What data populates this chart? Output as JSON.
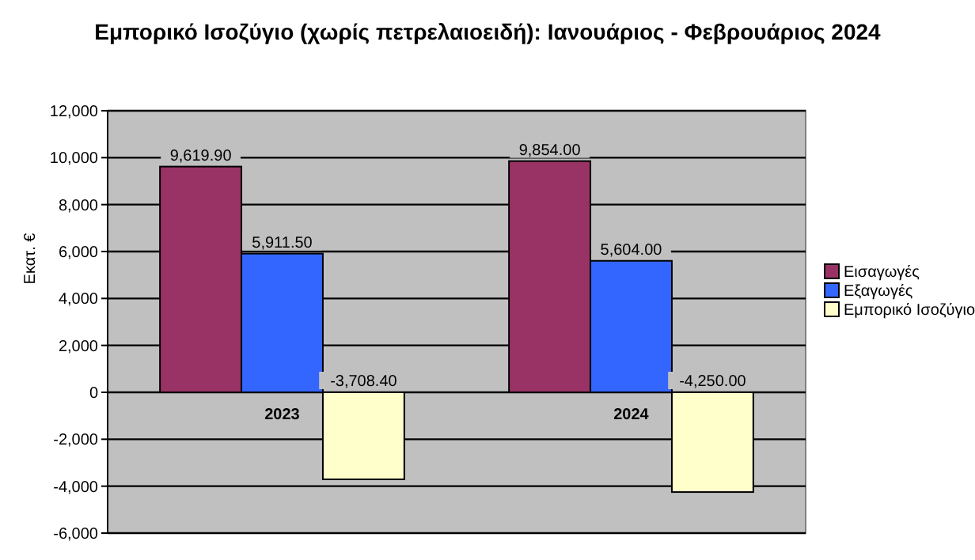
{
  "chart_data": {
    "type": "bar",
    "title": "Εμπορικό Ισοζύγιο (χωρίς πετρελαιοειδή): Ιανουάριος - Φεβρουάριος 2024",
    "ylabel": "Εκατ. €",
    "categories": [
      "2023",
      "2024"
    ],
    "series": [
      {
        "name": "Εισαγωγές",
        "color": "#993366",
        "values": [
          9619.9,
          9854.0
        ],
        "value_labels": [
          "9,619.90",
          "9,854.00"
        ]
      },
      {
        "name": "Εξαγωγές",
        "color": "#3366ff",
        "values": [
          5911.5,
          5604.0
        ],
        "value_labels": [
          "5,911.50",
          "5,604.00"
        ]
      },
      {
        "name": "Εμπορικό Ισοζύγιο",
        "color": "#ffffcc",
        "values": [
          -3708.4,
          -4250.0
        ],
        "value_labels": [
          "-3,708.40",
          "-4,250.00"
        ]
      }
    ],
    "ylim": [
      -6000,
      12000
    ],
    "yticks": [
      {
        "value": -6000,
        "label": "-6,000"
      },
      {
        "value": -4000,
        "label": "-4,000"
      },
      {
        "value": -2000,
        "label": "-2,000"
      },
      {
        "value": 0,
        "label": "0"
      },
      {
        "value": 2000,
        "label": "2,000"
      },
      {
        "value": 4000,
        "label": "4,000"
      },
      {
        "value": 6000,
        "label": "6,000"
      },
      {
        "value": 8000,
        "label": "8,000"
      },
      {
        "value": 10000,
        "label": "10,000"
      },
      {
        "value": 12000,
        "label": "12,000"
      }
    ],
    "grid": "y",
    "legend": "right"
  }
}
